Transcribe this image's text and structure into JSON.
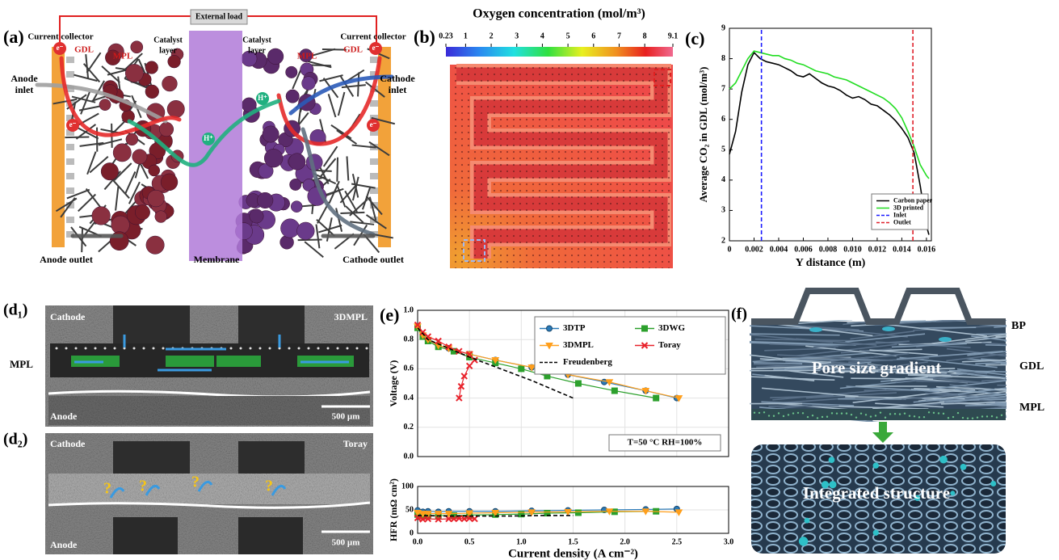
{
  "figure": {
    "panel_a": {
      "label": "(a)",
      "external_load": "External load",
      "current_collector": [
        "Current collector",
        "Current collector"
      ],
      "gdl": [
        "GDL",
        "GDL"
      ],
      "mpl": [
        "MPL",
        "MPL"
      ],
      "catalyst_layer": [
        [
          "Catalyst",
          "layer"
        ],
        [
          "Catalyst",
          "layer"
        ]
      ],
      "anode_inlet": [
        "Anode",
        "inlet"
      ],
      "cathode_inlet": [
        "Cathode",
        "inlet"
      ],
      "anode_outlet": "Anode outlet",
      "membrane": "Membrane",
      "cathode_outlet": "Cathode outlet",
      "electron": [
        "e⁻",
        "e⁻",
        "e⁻",
        "e⁻"
      ],
      "proton": [
        "H⁺",
        "H⁺"
      ]
    },
    "panel_b": {
      "label": "(b)",
      "colorbar_title": "Oxygen concentration (mol/m³)",
      "colorbar_range": [
        0.23,
        9.1
      ],
      "colorbar_ticks": [
        0.23,
        1,
        2,
        3,
        4,
        5,
        6,
        7,
        8,
        9.1
      ]
    },
    "panel_d1": {
      "label": "(d₁)",
      "top": "Cathode",
      "sample": "3DMPL",
      "side": "MPL",
      "bottom": "Anode",
      "scale_bar": "500 µm"
    },
    "panel_d2": {
      "label": "(d₂)",
      "top": "Cathode",
      "sample": "Toray",
      "bottom": "Anode",
      "scale_bar": "500 µm",
      "marks": [
        "?",
        "?",
        "?",
        "?"
      ]
    },
    "panel_f": {
      "label": "(f)",
      "bp": "BP",
      "gdl": "GDL",
      "mpl": "MPL",
      "top_caption": "Pore size gradient",
      "bottom_caption": "Integrated structure"
    }
  },
  "chart_data": [
    {
      "type": "line",
      "panel_label": "(c)",
      "xlabel": "Y distance (m)",
      "ylabel": "Average CO₂ in GDL (mol/m³)",
      "xlim": [
        0,
        0.0164
      ],
      "ylim": [
        2,
        9
      ],
      "xticks": [
        0,
        0.002,
        0.004,
        0.006,
        0.008,
        {
          "value": 0.01,
          "label": "0.010"
        },
        0.012,
        0.014,
        0.016
      ],
      "yticks": [
        2,
        3,
        4,
        5,
        6,
        7,
        8,
        9
      ],
      "grid": false,
      "legend": "lower right",
      "x": [
        0,
        0.0005,
        0.001,
        0.0015,
        0.002,
        0.0025,
        0.003,
        0.0035,
        0.004,
        0.0045,
        0.005,
        0.0055,
        0.006,
        0.0065,
        0.007,
        0.0075,
        0.008,
        0.0085,
        0.009,
        0.0095,
        0.01,
        0.0105,
        0.011,
        0.0115,
        0.012,
        0.0125,
        0.013,
        0.0135,
        0.014,
        0.0145,
        0.015,
        0.0155,
        0.016,
        0.0162
      ],
      "series": [
        {
          "name": "Carbon paper",
          "color": "#000000",
          "values": [
            4.85,
            5.6,
            6.9,
            7.8,
            8.2,
            8.0,
            7.9,
            7.85,
            7.8,
            7.7,
            7.6,
            7.45,
            7.4,
            7.5,
            7.35,
            7.2,
            7.1,
            7.05,
            6.95,
            6.8,
            6.7,
            6.75,
            6.65,
            6.5,
            6.45,
            6.3,
            6.15,
            5.95,
            5.7,
            5.4,
            4.9,
            3.8,
            2.5,
            2.2
          ]
        },
        {
          "name": "3D printed",
          "color": "#22dd22",
          "values": [
            7.0,
            7.2,
            7.6,
            8.0,
            8.25,
            8.2,
            8.15,
            8.1,
            8.1,
            8.0,
            7.95,
            7.85,
            7.8,
            7.7,
            7.6,
            7.55,
            7.5,
            7.4,
            7.35,
            7.3,
            7.2,
            7.1,
            7.0,
            6.9,
            6.8,
            6.7,
            6.55,
            6.35,
            6.05,
            5.6,
            5.1,
            4.5,
            4.15,
            4.05
          ]
        },
        {
          "name": "Inlet",
          "color": "#1a1aff",
          "dash": true,
          "x": [
            0.0026,
            0.0026
          ],
          "values": [
            2,
            9
          ]
        },
        {
          "name": "Outlet",
          "color": "#e0202a",
          "dash": true,
          "x": [
            0.0149,
            0.0149
          ],
          "values": [
            2,
            9
          ]
        }
      ]
    },
    {
      "type": "line",
      "panel_label": "(e)",
      "ylabel": "Voltage (V)",
      "annotation": "T=50 °C RH=100%",
      "xlim": [
        0,
        3
      ],
      "ylim": [
        0,
        1
      ],
      "xticks": [
        0,
        0.5,
        1,
        1.5,
        2,
        2.5,
        3
      ],
      "xticklabels": false,
      "yticks": [
        {
          "value": 0,
          "label": "0.0"
        },
        0.2,
        0.4,
        0.6,
        0.8,
        {
          "value": 1,
          "label": "1.0"
        }
      ],
      "grid": true,
      "legend": "upper right",
      "legend_columns": 2,
      "series": [
        {
          "name": "3DTP",
          "color": "#2a7ab8",
          "marker": "circle",
          "x": [
            0,
            0.05,
            0.1,
            0.2,
            0.3,
            0.5,
            0.75,
            1.1,
            1.45,
            1.8,
            2.2,
            2.5
          ],
          "values": [
            0.89,
            0.83,
            0.8,
            0.76,
            0.74,
            0.7,
            0.66,
            0.61,
            0.56,
            0.51,
            0.45,
            0.4
          ]
        },
        {
          "name": "3DWG",
          "color": "#2ca02c",
          "marker": "square",
          "x": [
            0,
            0.05,
            0.1,
            0.2,
            0.35,
            0.5,
            0.75,
            1.0,
            1.25,
            1.55,
            1.9,
            2.3
          ],
          "values": [
            0.88,
            0.82,
            0.79,
            0.75,
            0.72,
            0.68,
            0.64,
            0.6,
            0.55,
            0.5,
            0.45,
            0.4
          ]
        },
        {
          "name": "3DMPL",
          "color": "#ff9f1c",
          "marker": "triangle-down",
          "x": [
            0,
            0.05,
            0.1,
            0.2,
            0.3,
            0.5,
            0.75,
            1.1,
            1.45,
            1.85,
            2.2,
            2.52
          ],
          "values": [
            0.89,
            0.83,
            0.8,
            0.76,
            0.74,
            0.7,
            0.66,
            0.61,
            0.56,
            0.51,
            0.45,
            0.4
          ]
        },
        {
          "name": "Toray",
          "color": "#e8222b",
          "marker": "x",
          "x": [
            0,
            0.05,
            0.1,
            0.2,
            0.3,
            0.4,
            0.5,
            0.55,
            0.5,
            0.45,
            0.42,
            0.4
          ],
          "values": [
            0.9,
            0.85,
            0.82,
            0.79,
            0.75,
            0.72,
            0.7,
            0.66,
            0.62,
            0.55,
            0.48,
            0.4
          ]
        },
        {
          "name": "Freudenberg",
          "color": "#000000",
          "dash": true,
          "x": [
            0,
            0.1,
            0.3,
            0.5,
            0.8,
            1.1,
            1.3,
            1.5
          ],
          "values": [
            0.88,
            0.8,
            0.74,
            0.68,
            0.6,
            0.52,
            0.46,
            0.4
          ]
        }
      ]
    },
    {
      "type": "line",
      "xlabel": "Current density (A cm⁻²)",
      "ylabel": "HFR (mΩ cm²)",
      "xlim": [
        0,
        3
      ],
      "ylim": [
        0,
        100
      ],
      "xticks": [
        {
          "value": 0,
          "label": "0.0"
        },
        0.5,
        {
          "value": 1,
          "label": "1.0"
        },
        1.5,
        {
          "value": 2,
          "label": "2.0"
        },
        2.5,
        {
          "value": 3,
          "label": "3.0"
        }
      ],
      "yticks": [
        0,
        50,
        100
      ],
      "grid": true,
      "series": [
        {
          "color": "#2a7ab8",
          "marker": "circle",
          "x": [
            0,
            0.05,
            0.1,
            0.2,
            0.3,
            0.5,
            0.75,
            1.1,
            1.45,
            1.8,
            2.2,
            2.5
          ],
          "values": [
            49,
            46,
            47,
            46,
            47,
            47,
            47,
            48,
            49,
            50,
            51,
            52
          ]
        },
        {
          "color": "#2ca02c",
          "marker": "square",
          "x": [
            0,
            0.05,
            0.1,
            0.2,
            0.35,
            0.5,
            0.75,
            1.0,
            1.25,
            1.55,
            1.9,
            2.3
          ],
          "values": [
            40,
            38,
            38,
            38,
            38,
            39,
            40,
            41,
            43,
            44,
            46,
            47
          ]
        },
        {
          "color": "#ff9f1c",
          "marker": "triangle-down",
          "x": [
            0,
            0.05,
            0.1,
            0.2,
            0.3,
            0.5,
            0.75,
            1.1,
            1.45,
            1.85,
            2.2,
            2.52
          ],
          "values": [
            44,
            42,
            42,
            42,
            42,
            43,
            44,
            45,
            46,
            47,
            47,
            45
          ]
        },
        {
          "color": "#e8222b",
          "marker": "x",
          "x": [
            0,
            0.05,
            0.1,
            0.2,
            0.3,
            0.35,
            0.4,
            0.45,
            0.5,
            0.55
          ],
          "values": [
            33,
            30,
            31,
            30,
            31,
            31,
            32,
            31,
            32,
            31
          ]
        },
        {
          "color": "#000000",
          "dash": true,
          "x": [
            0,
            0.3,
            0.6,
            0.9,
            1.2,
            1.5
          ],
          "values": [
            38,
            37,
            37,
            37,
            38,
            38
          ]
        }
      ]
    }
  ]
}
